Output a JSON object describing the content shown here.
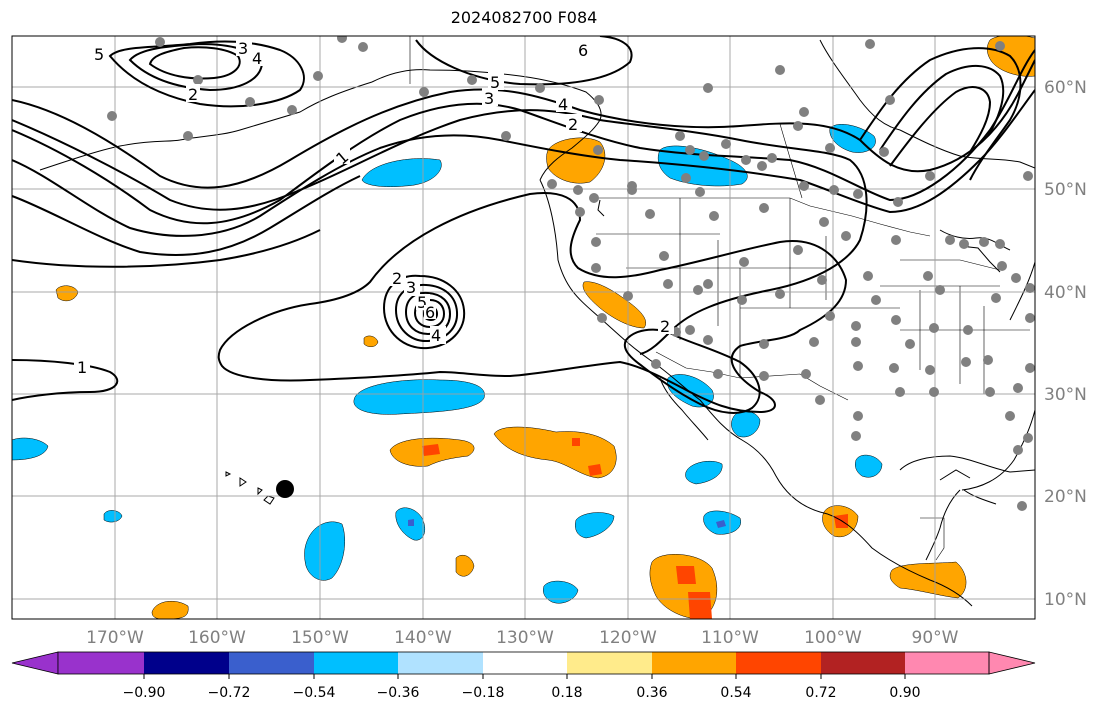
{
  "title": "2024082700 F084",
  "map": {
    "lon_labels": [
      "170°W",
      "160°W",
      "150°W",
      "140°W",
      "130°W",
      "120°W",
      "110°W",
      "100°W",
      "90°W"
    ],
    "lat_labels": [
      "60°N",
      "50°N",
      "40°N",
      "30°N",
      "20°N",
      "10°N"
    ],
    "contour_labels": [
      "1",
      "1",
      "2",
      "2",
      "3",
      "4",
      "5",
      "6",
      "3",
      "4",
      "5",
      "6",
      "2",
      "3",
      "4",
      "5",
      "2"
    ],
    "grid_color": "#a0a0a0"
  },
  "colorbar": {
    "ticks": [
      "−0.90",
      "−0.72",
      "−0.54",
      "−0.36",
      "−0.18",
      "0.18",
      "0.36",
      "0.54",
      "0.72",
      "0.90"
    ],
    "colors": [
      "#9932cc",
      "#00008b",
      "#3a5fcd",
      "#00bfff",
      "#b0e2ff",
      "#ffffff",
      "#ffeb8b",
      "#ffa500",
      "#ff4500",
      "#b22222",
      "#ff88b0"
    ]
  }
}
